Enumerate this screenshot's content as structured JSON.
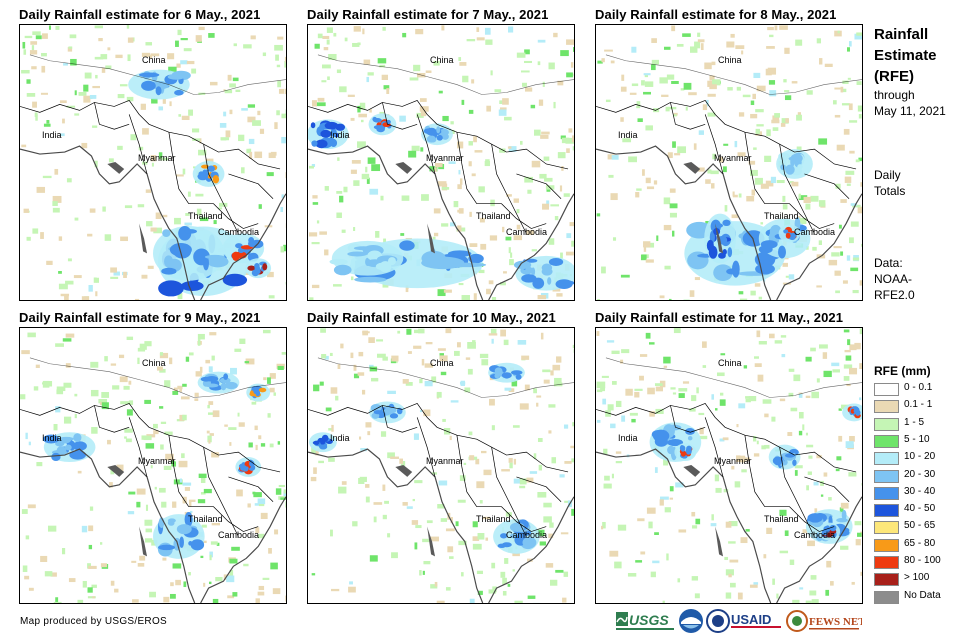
{
  "panels": [
    {
      "title": "Daily Rainfall estimate for 6 May., 2021"
    },
    {
      "title": "Daily Rainfall estimate for 7 May., 2021"
    },
    {
      "title": "Daily Rainfall estimate for 8 May., 2021"
    },
    {
      "title": "Daily Rainfall estimate for 9 May., 2021"
    },
    {
      "title": "Daily Rainfall estimate for 10 May., 2021"
    },
    {
      "title": "Daily Rainfall estimate for 11 May., 2021"
    }
  ],
  "places": {
    "china": "China",
    "india": "India",
    "myanmar": "Myanmar",
    "thailand": "Thailand",
    "cambodia": "Cambodia"
  },
  "sidebar": {
    "title_lines": [
      "Rainfall",
      "Estimate",
      "(RFE)"
    ],
    "through_label": "through",
    "through_date": "May 11, 2021",
    "totals_lines": [
      "Daily",
      "Totals"
    ],
    "data_lines": [
      "Data:",
      "NOAA-",
      "RFE2.0"
    ]
  },
  "legend": {
    "title": "RFE (mm)",
    "items": [
      {
        "label": "0 - 0.1",
        "color": "#ffffff"
      },
      {
        "label": "0.1 - 1",
        "color": "#ead9b4"
      },
      {
        "label": "1 - 5",
        "color": "#c5f5b5"
      },
      {
        "label": "5 - 10",
        "color": "#6fe46a"
      },
      {
        "label": "10 - 20",
        "color": "#b4ecf8"
      },
      {
        "label": "20 - 30",
        "color": "#7ec4f3"
      },
      {
        "label": "30 - 40",
        "color": "#4592ec"
      },
      {
        "label": "40 - 50",
        "color": "#1d55dc"
      },
      {
        "label": "50 - 65",
        "color": "#fde77a"
      },
      {
        "label": "65 - 80",
        "color": "#f89a18"
      },
      {
        "label": "80 - 100",
        "color": "#ee3a10"
      },
      {
        "label": "> 100",
        "color": "#a8201a"
      },
      {
        "label": "No Data",
        "color": "#8c8c8c"
      }
    ]
  },
  "footer": {
    "credit": "Map produced by USGS/EROS",
    "logos": [
      "USGS",
      "NOAA",
      "USAID",
      "FEWS NET"
    ]
  }
}
